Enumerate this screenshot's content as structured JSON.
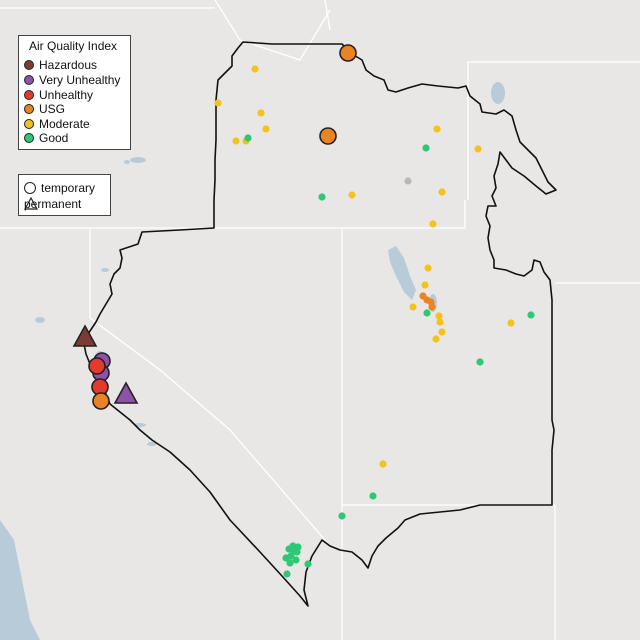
{
  "legend": {
    "title": "Air Quality Index",
    "levels": [
      {
        "label": "Hazardous",
        "color": "#7e3b35"
      },
      {
        "label": "Very Unhealthy",
        "color": "#8e52a8"
      },
      {
        "label": "Unhealthy",
        "color": "#e23b2e"
      },
      {
        "label": "USG",
        "color": "#ea8423"
      },
      {
        "label": "Moderate",
        "color": "#f2c21d"
      },
      {
        "label": "Good",
        "color": "#2ec874"
      }
    ],
    "shapes": [
      {
        "label": "temporary",
        "shape": "circle"
      },
      {
        "label": "permanent",
        "shape": "triangle"
      }
    ]
  },
  "map": {
    "background_color": "#e9e7e6",
    "water_color": "#b7cbd9",
    "boundary_color": "#111111",
    "unknown_color": "#b9b9b9"
  }
}
